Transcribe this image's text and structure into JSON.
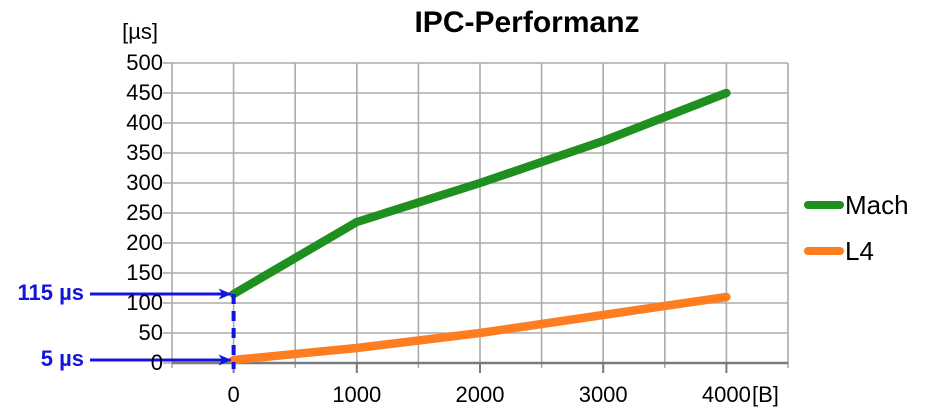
{
  "title": "IPC-Performanz",
  "chart_data": {
    "type": "line",
    "title": "IPC-Performanz",
    "y_unit": "[µs]",
    "x_unit": "[B]",
    "xlim": [
      -500,
      4500
    ],
    "ylim": [
      0,
      500
    ],
    "x_grid_step": 500,
    "y_grid_step": 50,
    "grid": true,
    "legend_position": "right",
    "x": [
      0,
      1000,
      2000,
      3000,
      4000
    ],
    "x_tick_values": [
      0,
      1000,
      2000,
      3000,
      4000
    ],
    "x_tick_labels": [
      "0",
      "1000",
      "2000",
      "3000",
      "4000"
    ],
    "y_tick_values": [
      0,
      50,
      100,
      150,
      200,
      250,
      300,
      350,
      400,
      450,
      500
    ],
    "y_tick_labels": [
      "0",
      "50",
      "100",
      "150",
      "200",
      "250",
      "300",
      "350",
      "400",
      "450",
      "500"
    ],
    "series": [
      {
        "name": "Mach",
        "color": "#1f8f1f",
        "values": [
          115,
          235,
          300,
          370,
          450
        ]
      },
      {
        "name": "L4",
        "color": "#ff7d21",
        "values": [
          5,
          25,
          50,
          80,
          110
        ]
      }
    ],
    "annotations": [
      {
        "label": "115 µs",
        "series": "Mach",
        "x": 0,
        "y": 115
      },
      {
        "label": "5 µs",
        "series": "L4",
        "x": 0,
        "y": 5
      }
    ],
    "annotation_color": "#1414e0",
    "grid_color": "#ababab",
    "axis_color": "#7a7a7a"
  },
  "legend": {
    "items": [
      {
        "label": "Mach"
      },
      {
        "label": "L4"
      }
    ]
  }
}
